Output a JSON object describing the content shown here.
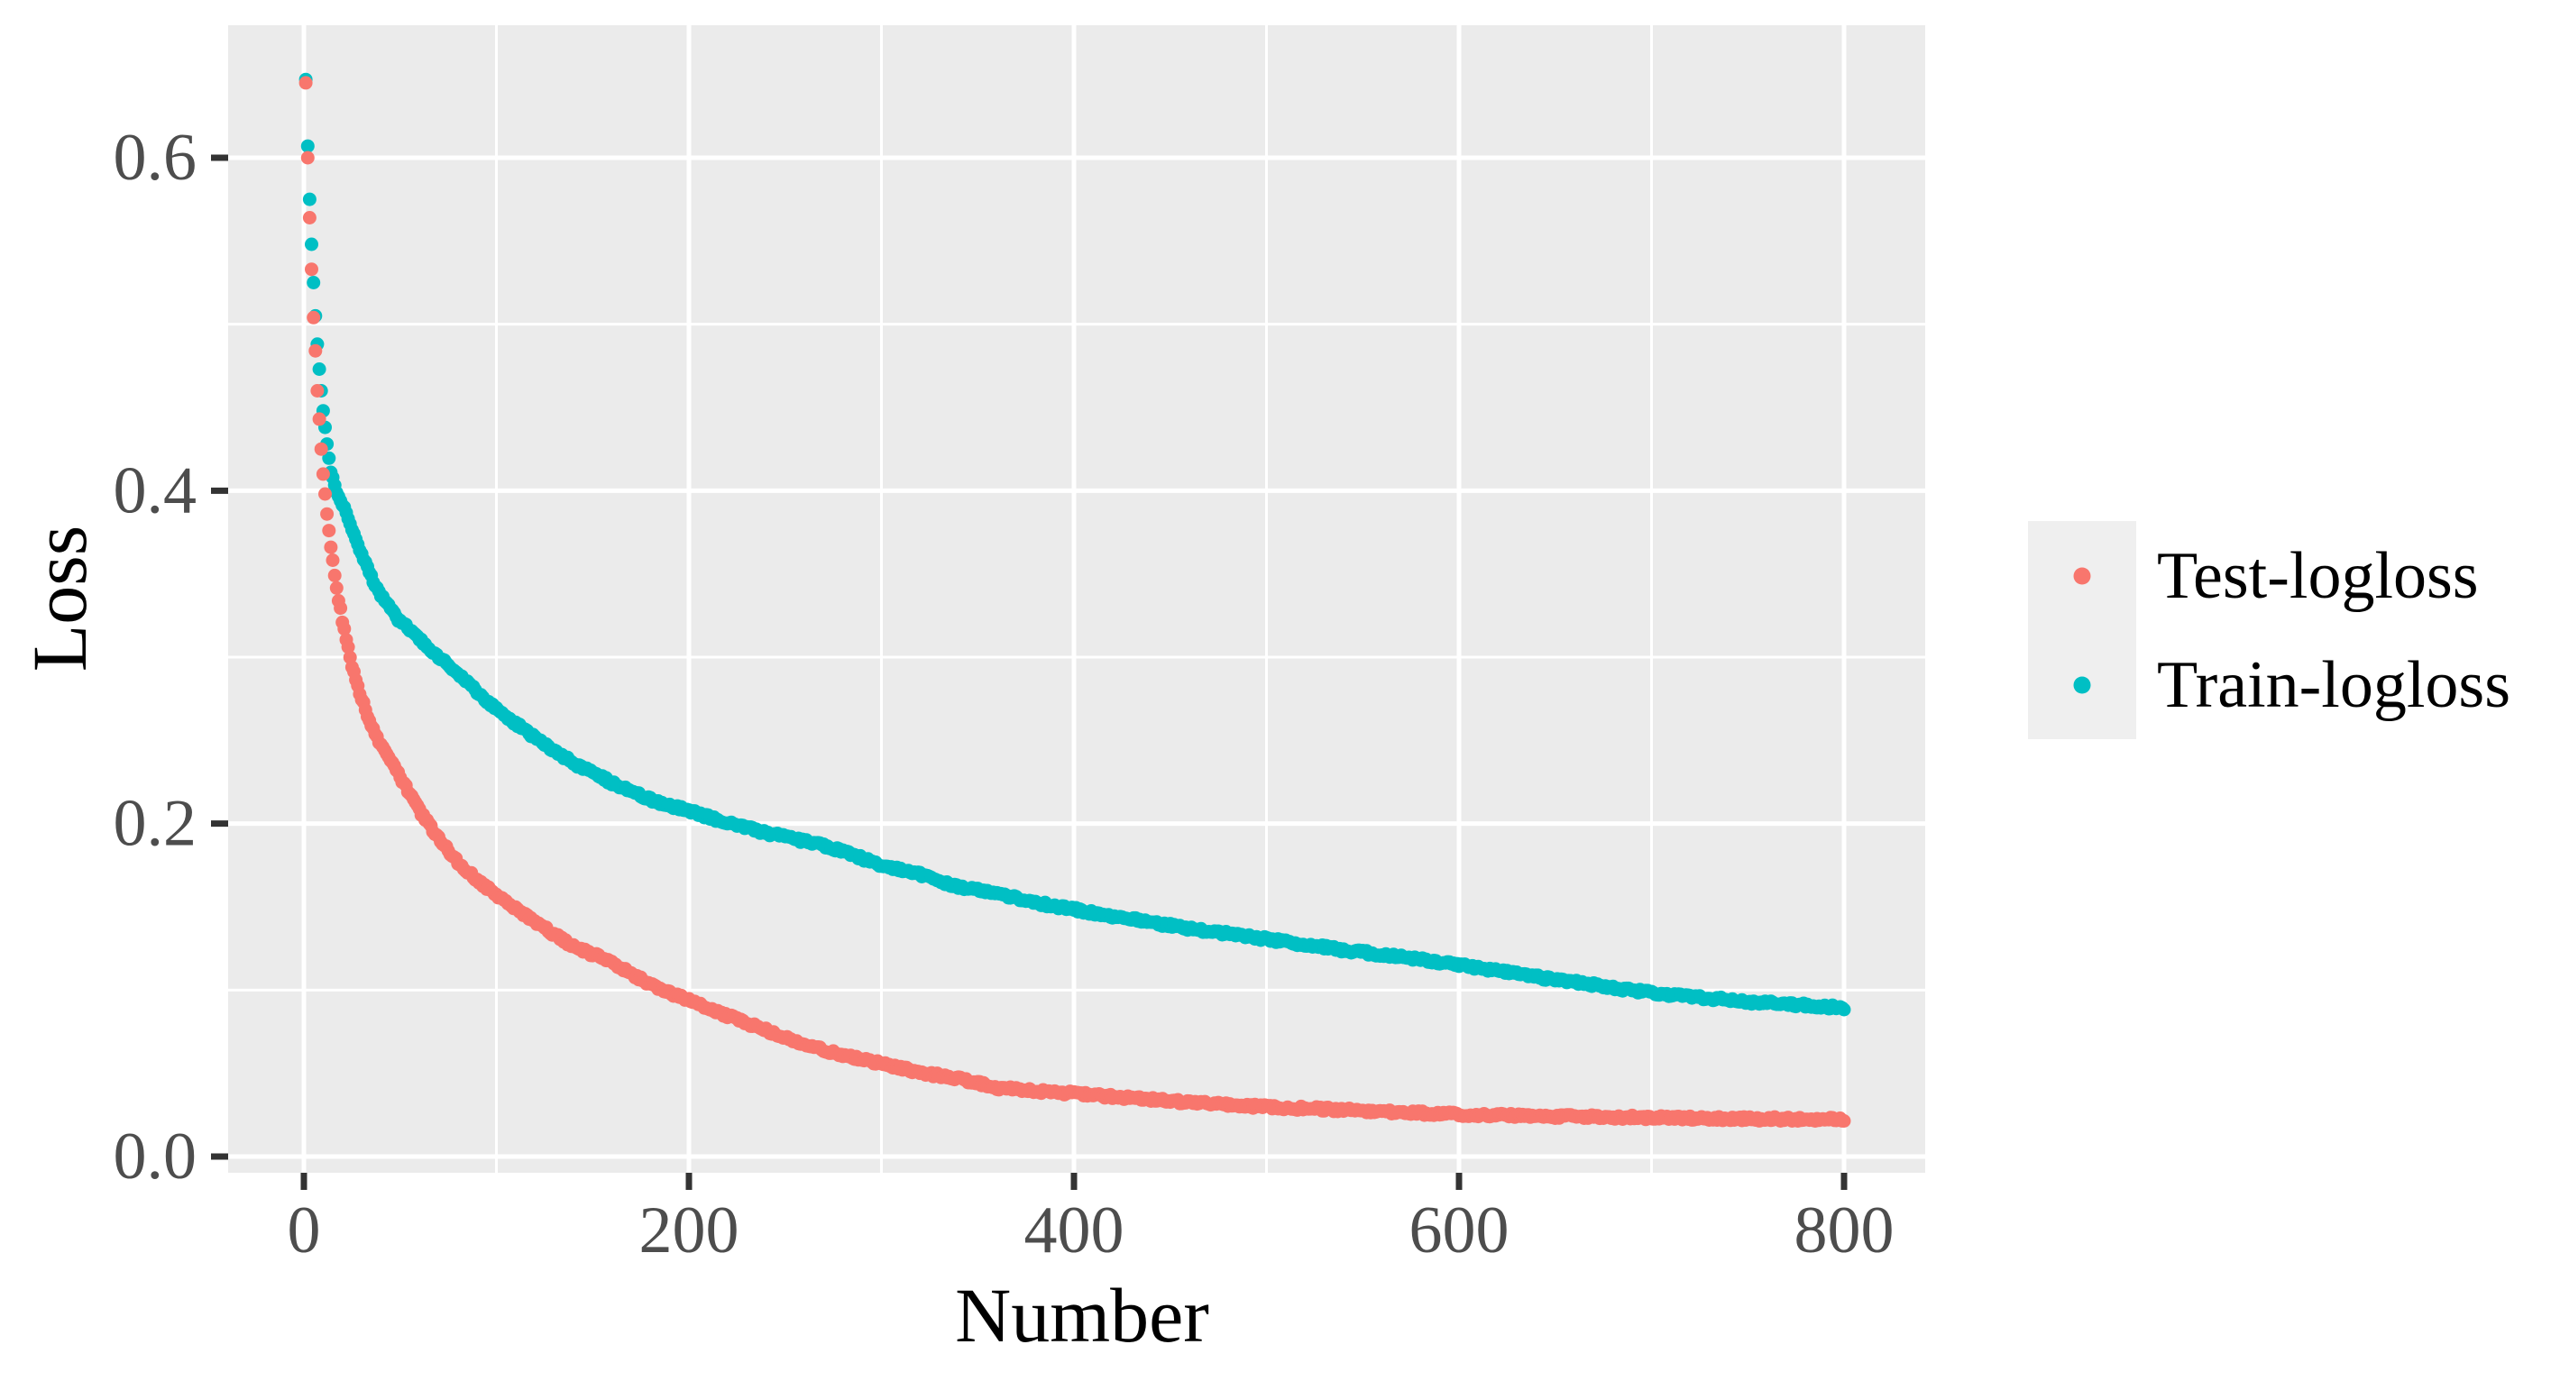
{
  "chart_data": {
    "type": "scatter",
    "title": "",
    "xlabel": "Number",
    "ylabel": "Loss",
    "x_ticks": [
      {
        "v": 0,
        "label": "0"
      },
      {
        "v": 200,
        "label": "200"
      },
      {
        "v": 400,
        "label": "400"
      },
      {
        "v": 600,
        "label": "600"
      },
      {
        "v": 800,
        "label": "800"
      }
    ],
    "y_ticks": [
      {
        "v": 0.0,
        "label": "0.0"
      },
      {
        "v": 0.2,
        "label": "0.2"
      },
      {
        "v": 0.4,
        "label": "0.4"
      },
      {
        "v": 0.6,
        "label": "0.6"
      }
    ],
    "x_minor_ticks": [
      100,
      300,
      500,
      700
    ],
    "y_minor_ticks": [
      0.1,
      0.3,
      0.5
    ],
    "xlim": [
      -39,
      842
    ],
    "ylim": [
      -0.0097,
      0.6796
    ],
    "grid": true,
    "legend_position": "right",
    "legend": {
      "entries": [
        {
          "label": "Test-logloss",
          "color": "#F8766D"
        },
        {
          "label": "Train-logloss",
          "color": "#00BFC4"
        }
      ]
    },
    "x_start": 1,
    "x_end": 800,
    "x_step": 1,
    "marker_radius_px": 7.5,
    "series": [
      {
        "name": "Test-logloss",
        "color": "#F8766D",
        "points": [
          [
            1,
            0.645
          ],
          [
            2,
            0.6
          ],
          [
            3,
            0.564
          ],
          [
            4,
            0.533
          ],
          [
            5,
            0.504
          ],
          [
            6,
            0.484
          ],
          [
            7,
            0.46
          ],
          [
            8,
            0.443
          ],
          [
            9,
            0.425
          ],
          [
            10,
            0.41
          ],
          [
            12,
            0.386
          ],
          [
            14,
            0.366
          ],
          [
            16,
            0.35
          ],
          [
            18,
            0.335
          ],
          [
            20,
            0.322
          ],
          [
            25,
            0.295
          ],
          [
            30,
            0.275
          ],
          [
            35,
            0.259
          ],
          [
            40,
            0.247
          ],
          [
            48,
            0.232
          ],
          [
            60,
            0.208
          ],
          [
            70,
            0.191
          ],
          [
            80,
            0.177
          ],
          [
            90,
            0.166
          ],
          [
            100,
            0.157
          ],
          [
            120,
            0.141
          ],
          [
            140,
            0.126
          ],
          [
            160,
            0.117
          ],
          [
            180,
            0.103
          ],
          [
            200,
            0.094
          ],
          [
            220,
            0.0845
          ],
          [
            240,
            0.076
          ],
          [
            264,
            0.0657
          ],
          [
            280,
            0.061
          ],
          [
            300,
            0.0558
          ],
          [
            320,
            0.0504
          ],
          [
            340,
            0.047
          ],
          [
            360,
            0.0414
          ],
          [
            380,
            0.0392
          ],
          [
            400,
            0.0379
          ],
          [
            430,
            0.035
          ],
          [
            460,
            0.0325
          ],
          [
            500,
            0.0298
          ],
          [
            540,
            0.028
          ],
          [
            570,
            0.0265
          ],
          [
            600,
            0.0252
          ],
          [
            640,
            0.0243
          ],
          [
            700,
            0.0234
          ],
          [
            750,
            0.0227
          ],
          [
            800,
            0.0222
          ]
        ]
      },
      {
        "name": "Train-logloss",
        "color": "#00BFC4",
        "points": [
          [
            1,
            0.647
          ],
          [
            2,
            0.607
          ],
          [
            3,
            0.575
          ],
          [
            4,
            0.548
          ],
          [
            5,
            0.525
          ],
          [
            6,
            0.505
          ],
          [
            7,
            0.488
          ],
          [
            8,
            0.473
          ],
          [
            9,
            0.46
          ],
          [
            10,
            0.448
          ],
          [
            12,
            0.428
          ],
          [
            14,
            0.411
          ],
          [
            17,
            0.4
          ],
          [
            20,
            0.392
          ],
          [
            25,
            0.377
          ],
          [
            30,
            0.362
          ],
          [
            35,
            0.348
          ],
          [
            40,
            0.337
          ],
          [
            48,
            0.324
          ],
          [
            60,
            0.311
          ],
          [
            70,
            0.3
          ],
          [
            80,
            0.29
          ],
          [
            90,
            0.279
          ],
          [
            100,
            0.269
          ],
          [
            120,
            0.2515
          ],
          [
            140,
            0.2365
          ],
          [
            160,
            0.2245
          ],
          [
            180,
            0.2145
          ],
          [
            200,
            0.2075
          ],
          [
            220,
            0.2005
          ],
          [
            240,
            0.1945
          ],
          [
            264,
            0.1885
          ],
          [
            280,
            0.1835
          ],
          [
            300,
            0.1749
          ],
          [
            320,
            0.1695
          ],
          [
            340,
            0.162
          ],
          [
            360,
            0.158
          ],
          [
            380,
            0.1525
          ],
          [
            400,
            0.1485
          ],
          [
            430,
            0.1425
          ],
          [
            460,
            0.137
          ],
          [
            500,
            0.1306
          ],
          [
            540,
            0.124
          ],
          [
            570,
            0.12
          ],
          [
            600,
            0.1153
          ],
          [
            640,
            0.108
          ],
          [
            700,
            0.0982
          ],
          [
            750,
            0.093
          ],
          [
            800,
            0.0893
          ]
        ]
      }
    ]
  },
  "style": {
    "page_bg": "#FFFFFF",
    "panel_bg": "#EBEBEB",
    "grid_color": "#FFFFFF",
    "tick_color": "#333333",
    "tick_label_color": "#4D4D4D",
    "title_color": "#000000",
    "legend_key_bg": "#EFEFEF",
    "legend_label_color": "#000000"
  }
}
